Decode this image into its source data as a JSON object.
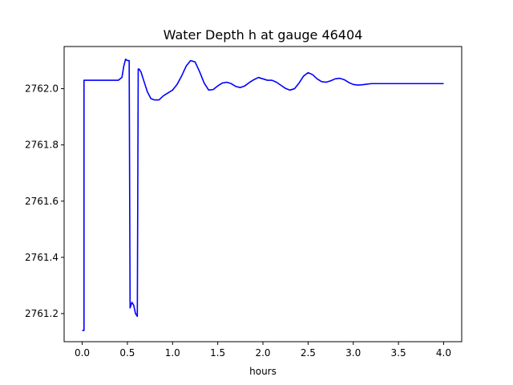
{
  "chart_data": {
    "type": "line",
    "title": "Water Depth h at gauge 46404",
    "xlabel": "hours",
    "ylabel": "",
    "xlim": [
      -0.2,
      4.2
    ],
    "ylim": [
      2761.1,
      2762.15
    ],
    "x_ticks": [
      0.0,
      0.5,
      1.0,
      1.5,
      2.0,
      2.5,
      3.0,
      3.5,
      4.0
    ],
    "x_tick_labels": [
      "0.0",
      "0.5",
      "1.0",
      "1.5",
      "2.0",
      "2.5",
      "3.0",
      "3.5",
      "4.0"
    ],
    "y_ticks": [
      2761.2,
      2761.4,
      2761.6,
      2761.8,
      2762.0
    ],
    "y_tick_labels": [
      "2761.2",
      "2761.4",
      "2761.6",
      "2761.8",
      "2762.0"
    ],
    "grid": false,
    "series": [
      {
        "color": "#0000ff",
        "x": [
          0.0,
          0.02,
          0.02,
          0.03,
          0.1,
          0.2,
          0.3,
          0.4,
          0.44,
          0.46,
          0.48,
          0.5,
          0.52,
          0.53,
          0.54,
          0.55,
          0.57,
          0.59,
          0.61,
          0.62,
          0.63,
          0.65,
          0.68,
          0.72,
          0.76,
          0.8,
          0.85,
          0.9,
          0.95,
          1.0,
          1.05,
          1.1,
          1.15,
          1.2,
          1.25,
          1.3,
          1.35,
          1.4,
          1.45,
          1.5,
          1.55,
          1.6,
          1.65,
          1.7,
          1.75,
          1.8,
          1.85,
          1.9,
          1.95,
          2.0,
          2.05,
          2.1,
          2.15,
          2.2,
          2.25,
          2.3,
          2.35,
          2.4,
          2.45,
          2.5,
          2.55,
          2.6,
          2.65,
          2.7,
          2.75,
          2.8,
          2.85,
          2.9,
          2.95,
          3.0,
          3.05,
          3.1,
          3.15,
          3.2,
          3.25,
          3.3,
          3.35,
          3.4,
          3.45,
          3.5,
          3.55,
          3.6,
          3.65,
          3.7,
          3.75,
          3.8,
          3.85,
          3.9,
          3.95,
          4.0
        ],
        "y": [
          2761.14,
          2761.14,
          2762.03,
          2762.03,
          2762.03,
          2762.03,
          2762.03,
          2762.03,
          2762.04,
          2762.08,
          2762.105,
          2762.1,
          2762.1,
          2761.22,
          2761.23,
          2761.24,
          2761.23,
          2761.2,
          2761.19,
          2762.07,
          2762.07,
          2762.06,
          2762.03,
          2761.99,
          2761.965,
          2761.96,
          2761.96,
          2761.975,
          2761.985,
          2761.995,
          2762.015,
          2762.045,
          2762.08,
          2762.1,
          2762.095,
          2762.06,
          2762.02,
          2761.995,
          2761.997,
          2762.01,
          2762.02,
          2762.023,
          2762.018,
          2762.008,
          2762.004,
          2762.01,
          2762.022,
          2762.032,
          2762.04,
          2762.035,
          2762.03,
          2762.03,
          2762.023,
          2762.012,
          2762.001,
          2761.995,
          2762.0,
          2762.02,
          2762.045,
          2762.057,
          2762.05,
          2762.035,
          2762.025,
          2762.023,
          2762.028,
          2762.035,
          2762.037,
          2762.032,
          2762.022,
          2762.015,
          2762.013,
          2762.014,
          2762.016,
          2762.018,
          2762.018,
          2762.018,
          2762.018,
          2762.018,
          2762.018,
          2762.018,
          2762.018,
          2762.018,
          2762.018,
          2762.018,
          2762.018,
          2762.018,
          2762.018,
          2762.018,
          2762.018,
          2762.018
        ]
      }
    ]
  }
}
